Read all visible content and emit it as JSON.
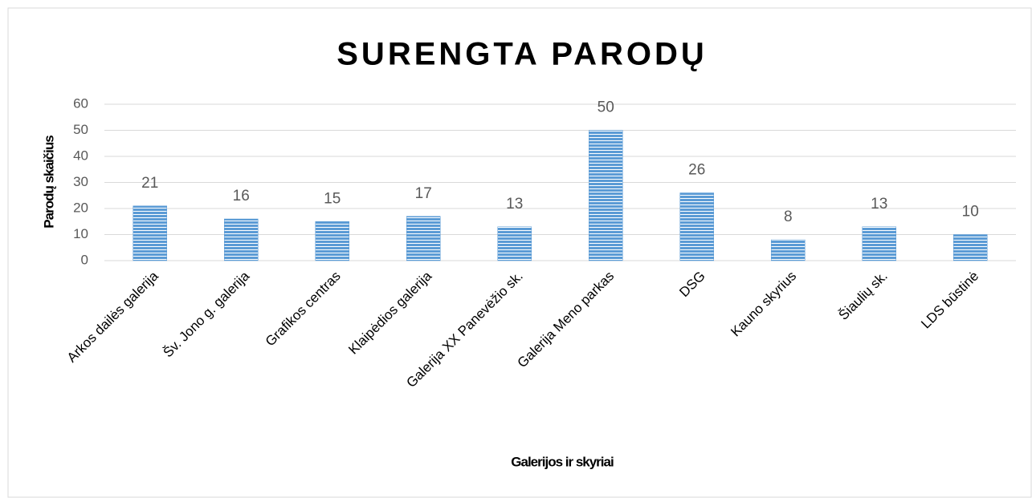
{
  "chart_data": {
    "type": "bar",
    "title": "SURENGTA PARODŲ",
    "x_label": "Galerijos ir skyriai",
    "y_label": "Parodų skaičius",
    "categories": [
      "Arkos dailės galerija",
      "Šv. Jono g. galerija",
      "Grafikos centras",
      "Klaipėdios galerija",
      "Galerija XX Panevėžio sk.",
      "Galerija Meno parkas",
      "DSG",
      "Kauno skyrius",
      "Šiaulių sk.",
      "LDS būstinė"
    ],
    "values": [
      21,
      16,
      15,
      17,
      13,
      50,
      26,
      8,
      13,
      10
    ],
    "color": "#5b9bd5",
    "ylim": [
      0,
      60
    ],
    "yticks": [
      0,
      10,
      20,
      30,
      40,
      50,
      60
    ],
    "grid": true
  }
}
